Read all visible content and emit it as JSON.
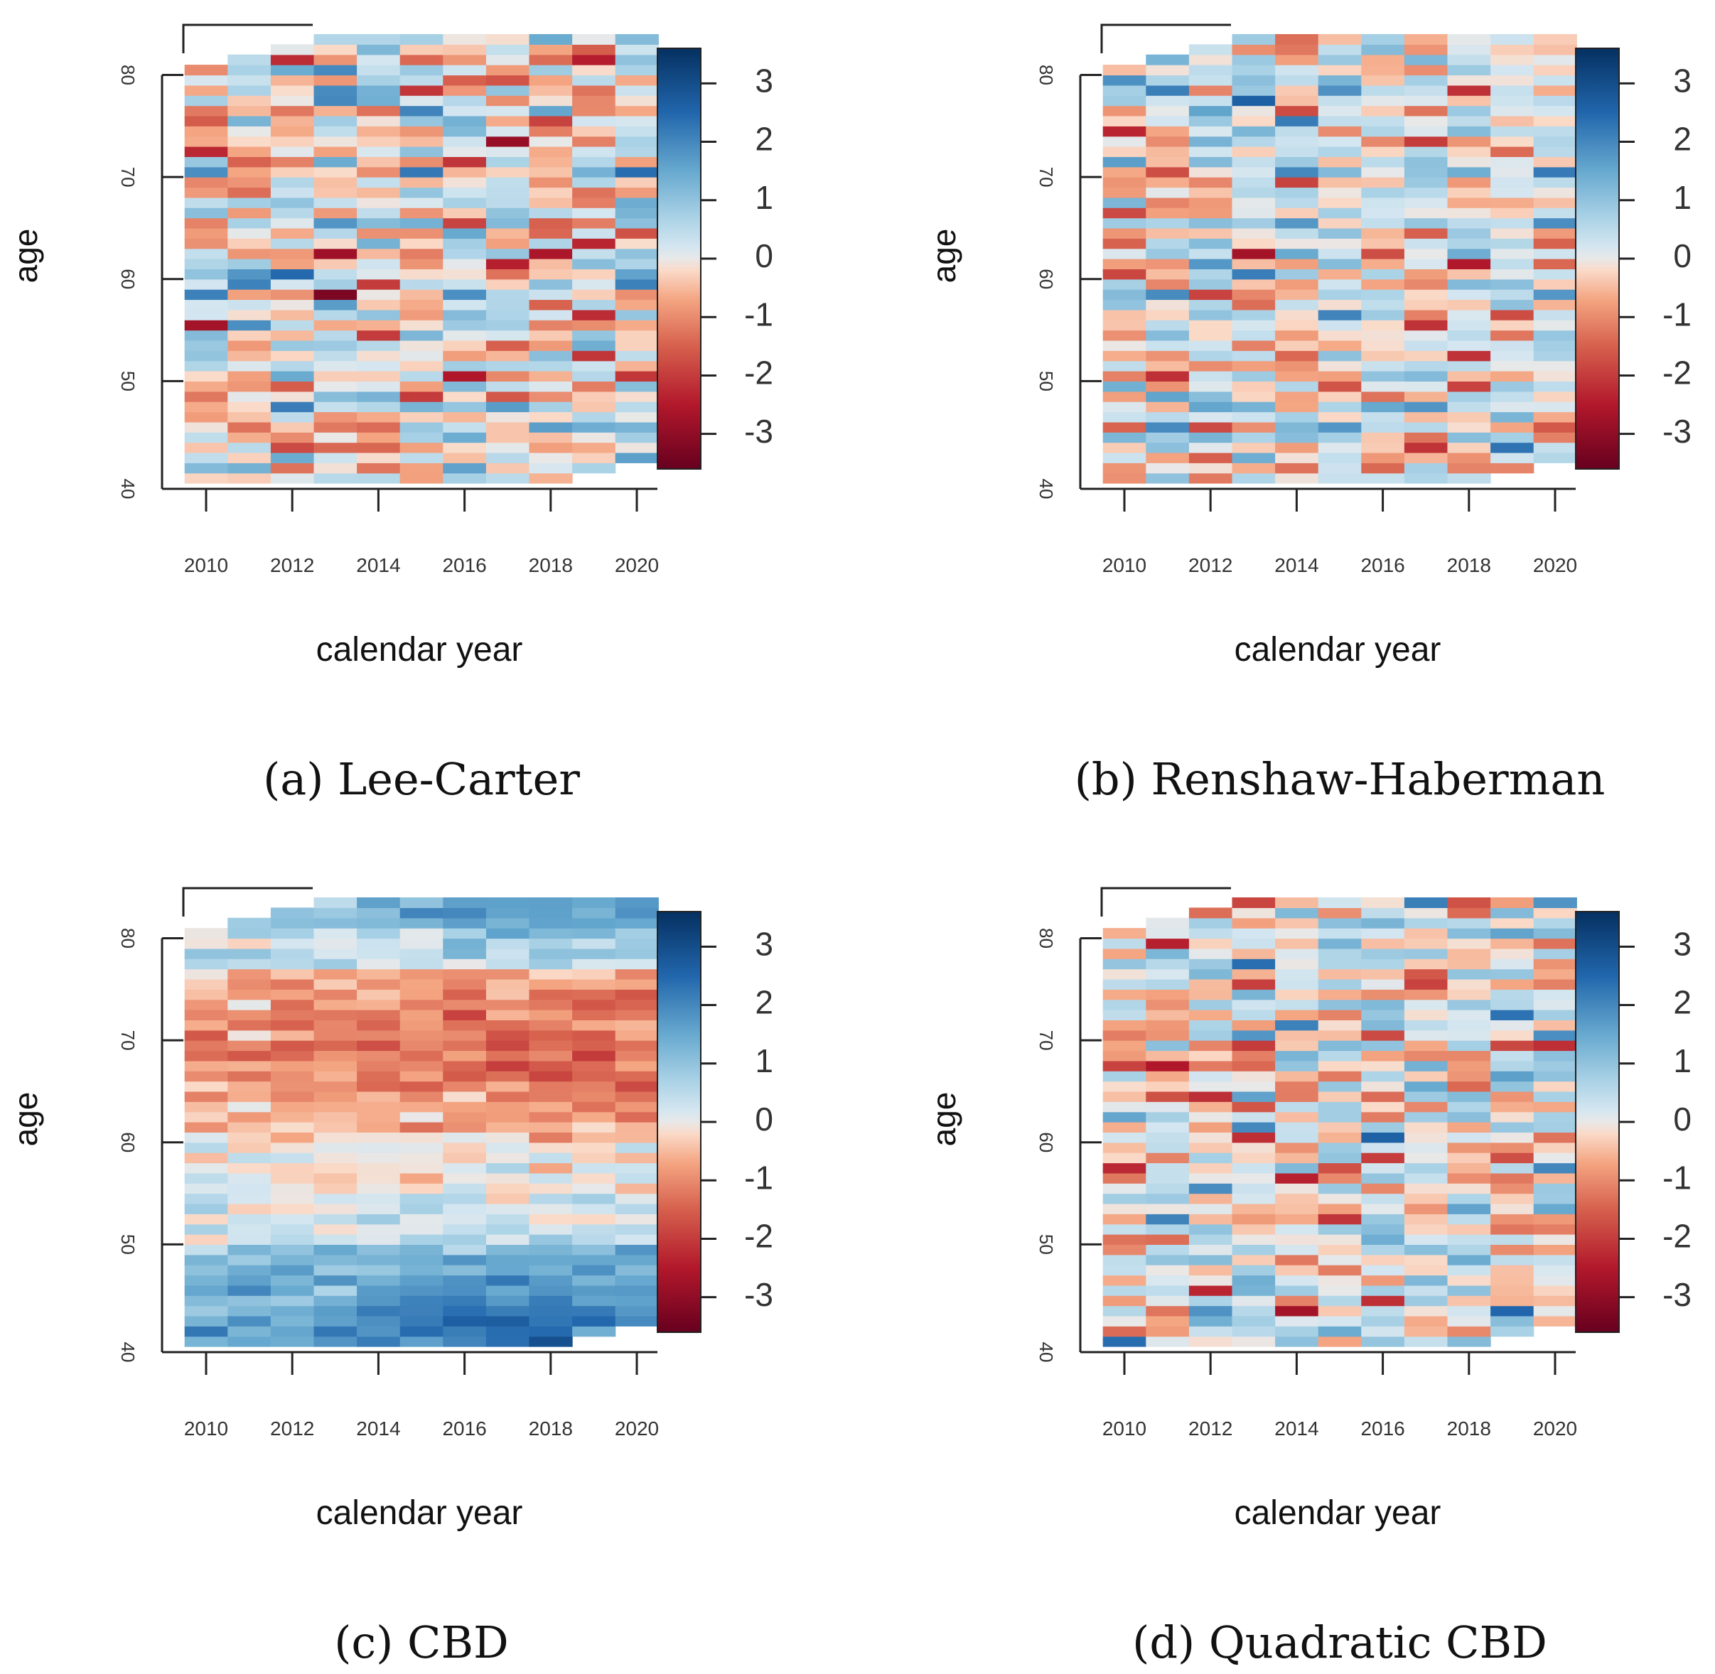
{
  "figure": {
    "panels": [
      {
        "caption": "(a) Lee-Carter",
        "xlabel": "calendar year",
        "ylabel": "age",
        "x_ticks": [
          "2010",
          "2012",
          "2014",
          "2016",
          "2018",
          "2020"
        ],
        "y_ticks": [
          "40",
          "50",
          "60",
          "70",
          "80"
        ],
        "colorbar_ticks": [
          "3",
          "2",
          "1",
          "0",
          "-1",
          "-2",
          "-3"
        ]
      },
      {
        "caption": "(b) Renshaw-Haberman",
        "xlabel": "calendar year",
        "ylabel": "age",
        "x_ticks": [
          "2010",
          "2012",
          "2014",
          "2016",
          "2018",
          "2020"
        ],
        "y_ticks": [
          "40",
          "50",
          "60",
          "70",
          "80"
        ],
        "colorbar_ticks": [
          "3",
          "2",
          "1",
          "0",
          "-1",
          "-2",
          "-3"
        ]
      },
      {
        "caption": "(c) CBD",
        "xlabel": "calendar year",
        "ylabel": "age",
        "x_ticks": [
          "2010",
          "2012",
          "2014",
          "2016",
          "2018",
          "2020"
        ],
        "y_ticks": [
          "40",
          "50",
          "60",
          "70",
          "80"
        ],
        "colorbar_ticks": [
          "3",
          "2",
          "1",
          "0",
          "-1",
          "-2",
          "-3"
        ]
      },
      {
        "caption": "(d) Quadratic CBD",
        "xlabel": "calendar year",
        "ylabel": "age",
        "x_ticks": [
          "2010",
          "2012",
          "2014",
          "2016",
          "2018",
          "2020"
        ],
        "y_ticks": [
          "40",
          "50",
          "60",
          "70",
          "80"
        ],
        "colorbar_ticks": [
          "3",
          "2",
          "1",
          "0",
          "-1",
          "-2",
          "-3"
        ]
      }
    ]
  },
  "chart_data": [
    {
      "type": "heatmap",
      "title": "(a) Lee-Carter",
      "xlabel": "calendar year",
      "ylabel": "age",
      "x_range": [
        2009.5,
        2020.5
      ],
      "y_range": [
        40,
        84
      ],
      "colorbar_range": [
        -3.6,
        3.6
      ],
      "colorbar_ticks": [
        3,
        2,
        1,
        0,
        -1,
        -2,
        -3
      ],
      "colormap": "RdBu (red = negative, blue = positive)",
      "pattern": "random",
      "seed": 11,
      "amplitude": 0.9,
      "highlights": [
        {
          "year": 2017,
          "age": 73,
          "value": -2.9
        },
        {
          "year": 2016,
          "age": 71,
          "value": -2.1
        },
        {
          "year": 2020,
          "age": 70,
          "value": 2.4
        },
        {
          "year": 2013,
          "age": 77,
          "value": 2.0
        },
        {
          "year": 2013,
          "age": 62,
          "value": -2.8
        },
        {
          "year": 2017,
          "age": 61,
          "value": -2.4
        },
        {
          "year": 2018,
          "age": 62,
          "value": -2.6
        },
        {
          "year": 2019,
          "age": 63,
          "value": -2.3
        },
        {
          "year": 2020,
          "age": 64,
          "value": -1.7
        },
        {
          "year": 2013,
          "age": 58,
          "value": -3.3
        },
        {
          "year": 2014,
          "age": 59,
          "value": -2.0
        },
        {
          "year": 2010,
          "age": 55,
          "value": -2.7
        },
        {
          "year": 2011,
          "age": 55,
          "value": 1.9
        },
        {
          "year": 2010,
          "age": 58,
          "value": 2.1
        },
        {
          "year": 2010,
          "age": 70,
          "value": 1.9
        },
        {
          "year": 2016,
          "age": 64,
          "value": 1.5
        },
        {
          "year": 2017,
          "age": 47,
          "value": 1.7
        },
        {
          "year": 2016,
          "age": 41,
          "value": 1.6
        },
        {
          "year": 2019,
          "age": 45,
          "value": 1.4
        }
      ]
    },
    {
      "type": "heatmap",
      "title": "(b) Renshaw-Haberman",
      "xlabel": "calendar year",
      "ylabel": "age",
      "x_range": [
        2009.5,
        2020.5
      ],
      "y_range": [
        40,
        84
      ],
      "colorbar_range": [
        -3.6,
        3.6
      ],
      "colorbar_ticks": [
        3,
        2,
        1,
        0,
        -1,
        -2,
        -3
      ],
      "colormap": "RdBu (red = negative, blue = positive)",
      "pattern": "random",
      "seed": 23,
      "amplitude": 0.85,
      "highlights": [
        {
          "year": 2014,
          "age": 70,
          "value": 2.0
        },
        {
          "year": 2020,
          "age": 70,
          "value": 2.2
        },
        {
          "year": 2013,
          "age": 62,
          "value": -2.7
        },
        {
          "year": 2012,
          "age": 58,
          "value": -1.9
        },
        {
          "year": 2017,
          "age": 73,
          "value": -2.0
        },
        {
          "year": 2019,
          "age": 43,
          "value": 2.3
        },
        {
          "year": 2017,
          "age": 47,
          "value": 1.8
        },
        {
          "year": 2012,
          "age": 45,
          "value": -1.8
        },
        {
          "year": 2016,
          "age": 41,
          "value": -1.4
        }
      ]
    },
    {
      "type": "heatmap",
      "title": "(c) CBD",
      "xlabel": "calendar year",
      "ylabel": "age",
      "x_range": [
        2009.5,
        2020.5
      ],
      "y_range": [
        40,
        84
      ],
      "colorbar_range": [
        -3.6,
        3.6
      ],
      "colorbar_ticks": [
        3,
        2,
        1,
        0,
        -1,
        -2,
        -3
      ],
      "colormap": "RdBu (red = negative, blue = positive)",
      "pattern": "smooth-bands",
      "seed": 37,
      "amplitude": 0.35,
      "description": "Positive residuals at youngest (40-50) and oldest (78-84) ages, negative residuals around ages 62-76, strengthening in later years",
      "highlights": [
        {
          "year": 2016,
          "age": 72,
          "value": -1.9
        },
        {
          "year": 2019,
          "age": 43,
          "value": 2.2
        },
        {
          "year": 2017,
          "age": 41,
          "value": 2.4
        },
        {
          "year": 2016,
          "age": 82,
          "value": 2.0
        },
        {
          "year": 2020,
          "age": 65,
          "value": -1.8
        }
      ]
    },
    {
      "type": "heatmap",
      "title": "(d) Quadratic CBD",
      "xlabel": "calendar year",
      "ylabel": "age",
      "x_range": [
        2009.5,
        2020.5
      ],
      "y_range": [
        40,
        84
      ],
      "colorbar_range": [
        -3.6,
        3.6
      ],
      "colorbar_ticks": [
        3,
        2,
        1,
        0,
        -1,
        -2,
        -3
      ],
      "colormap": "RdBu (red = negative, blue = positive)",
      "pattern": "random",
      "seed": 53,
      "amplitude": 0.95,
      "highlights": [
        {
          "year": 2011,
          "age": 79,
          "value": -2.4
        },
        {
          "year": 2013,
          "age": 61,
          "value": 2.0
        },
        {
          "year": 2013,
          "age": 60,
          "value": -2.2
        },
        {
          "year": 2014,
          "age": 71,
          "value": 2.1
        },
        {
          "year": 2020,
          "age": 69,
          "value": -2.2
        },
        {
          "year": 2020,
          "age": 70,
          "value": 1.9
        },
        {
          "year": 2019,
          "age": 43,
          "value": 2.5
        },
        {
          "year": 2012,
          "age": 45,
          "value": -2.3
        },
        {
          "year": 2010,
          "age": 40,
          "value": 2.4
        },
        {
          "year": 2016,
          "age": 70,
          "value": -1.8
        },
        {
          "year": 2017,
          "age": 75,
          "value": -1.9
        }
      ]
    }
  ]
}
